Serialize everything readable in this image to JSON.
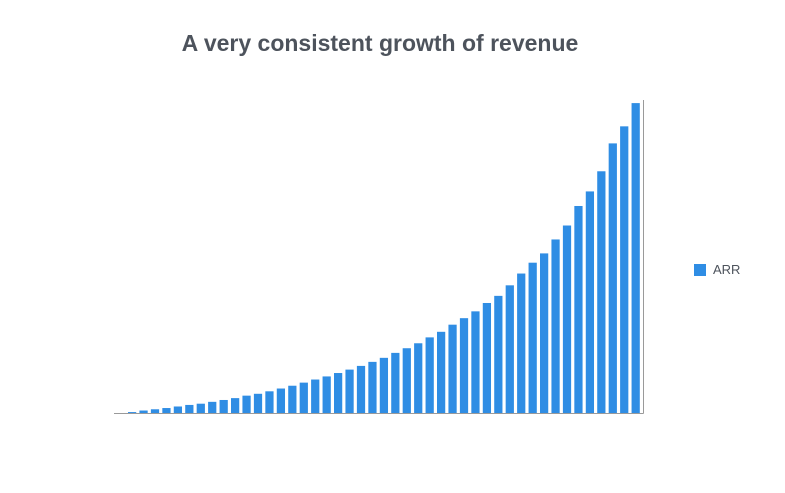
{
  "chart_data": {
    "type": "bar",
    "title": "A very consistent growth of revenue",
    "xlabel": "",
    "ylabel": "",
    "ylim": [
      0,
      101
    ],
    "grid": false,
    "legend_position": "right",
    "series": [
      {
        "name": "ARR",
        "color": "#2f8de4",
        "values": [
          0.3,
          0.8,
          1.2,
          1.6,
          2.1,
          2.6,
          3.0,
          3.6,
          4.2,
          4.8,
          5.6,
          6.2,
          7.0,
          7.9,
          8.8,
          9.8,
          10.8,
          11.8,
          12.9,
          14.0,
          15.2,
          16.5,
          17.8,
          19.4,
          20.9,
          22.5,
          24.4,
          26.2,
          28.5,
          30.6,
          32.8,
          35.5,
          37.8,
          41.2,
          45.0,
          48.5,
          51.5,
          56.0,
          60.5,
          66.8,
          71.5,
          78.0,
          87.0,
          92.5,
          100.0
        ]
      }
    ]
  }
}
